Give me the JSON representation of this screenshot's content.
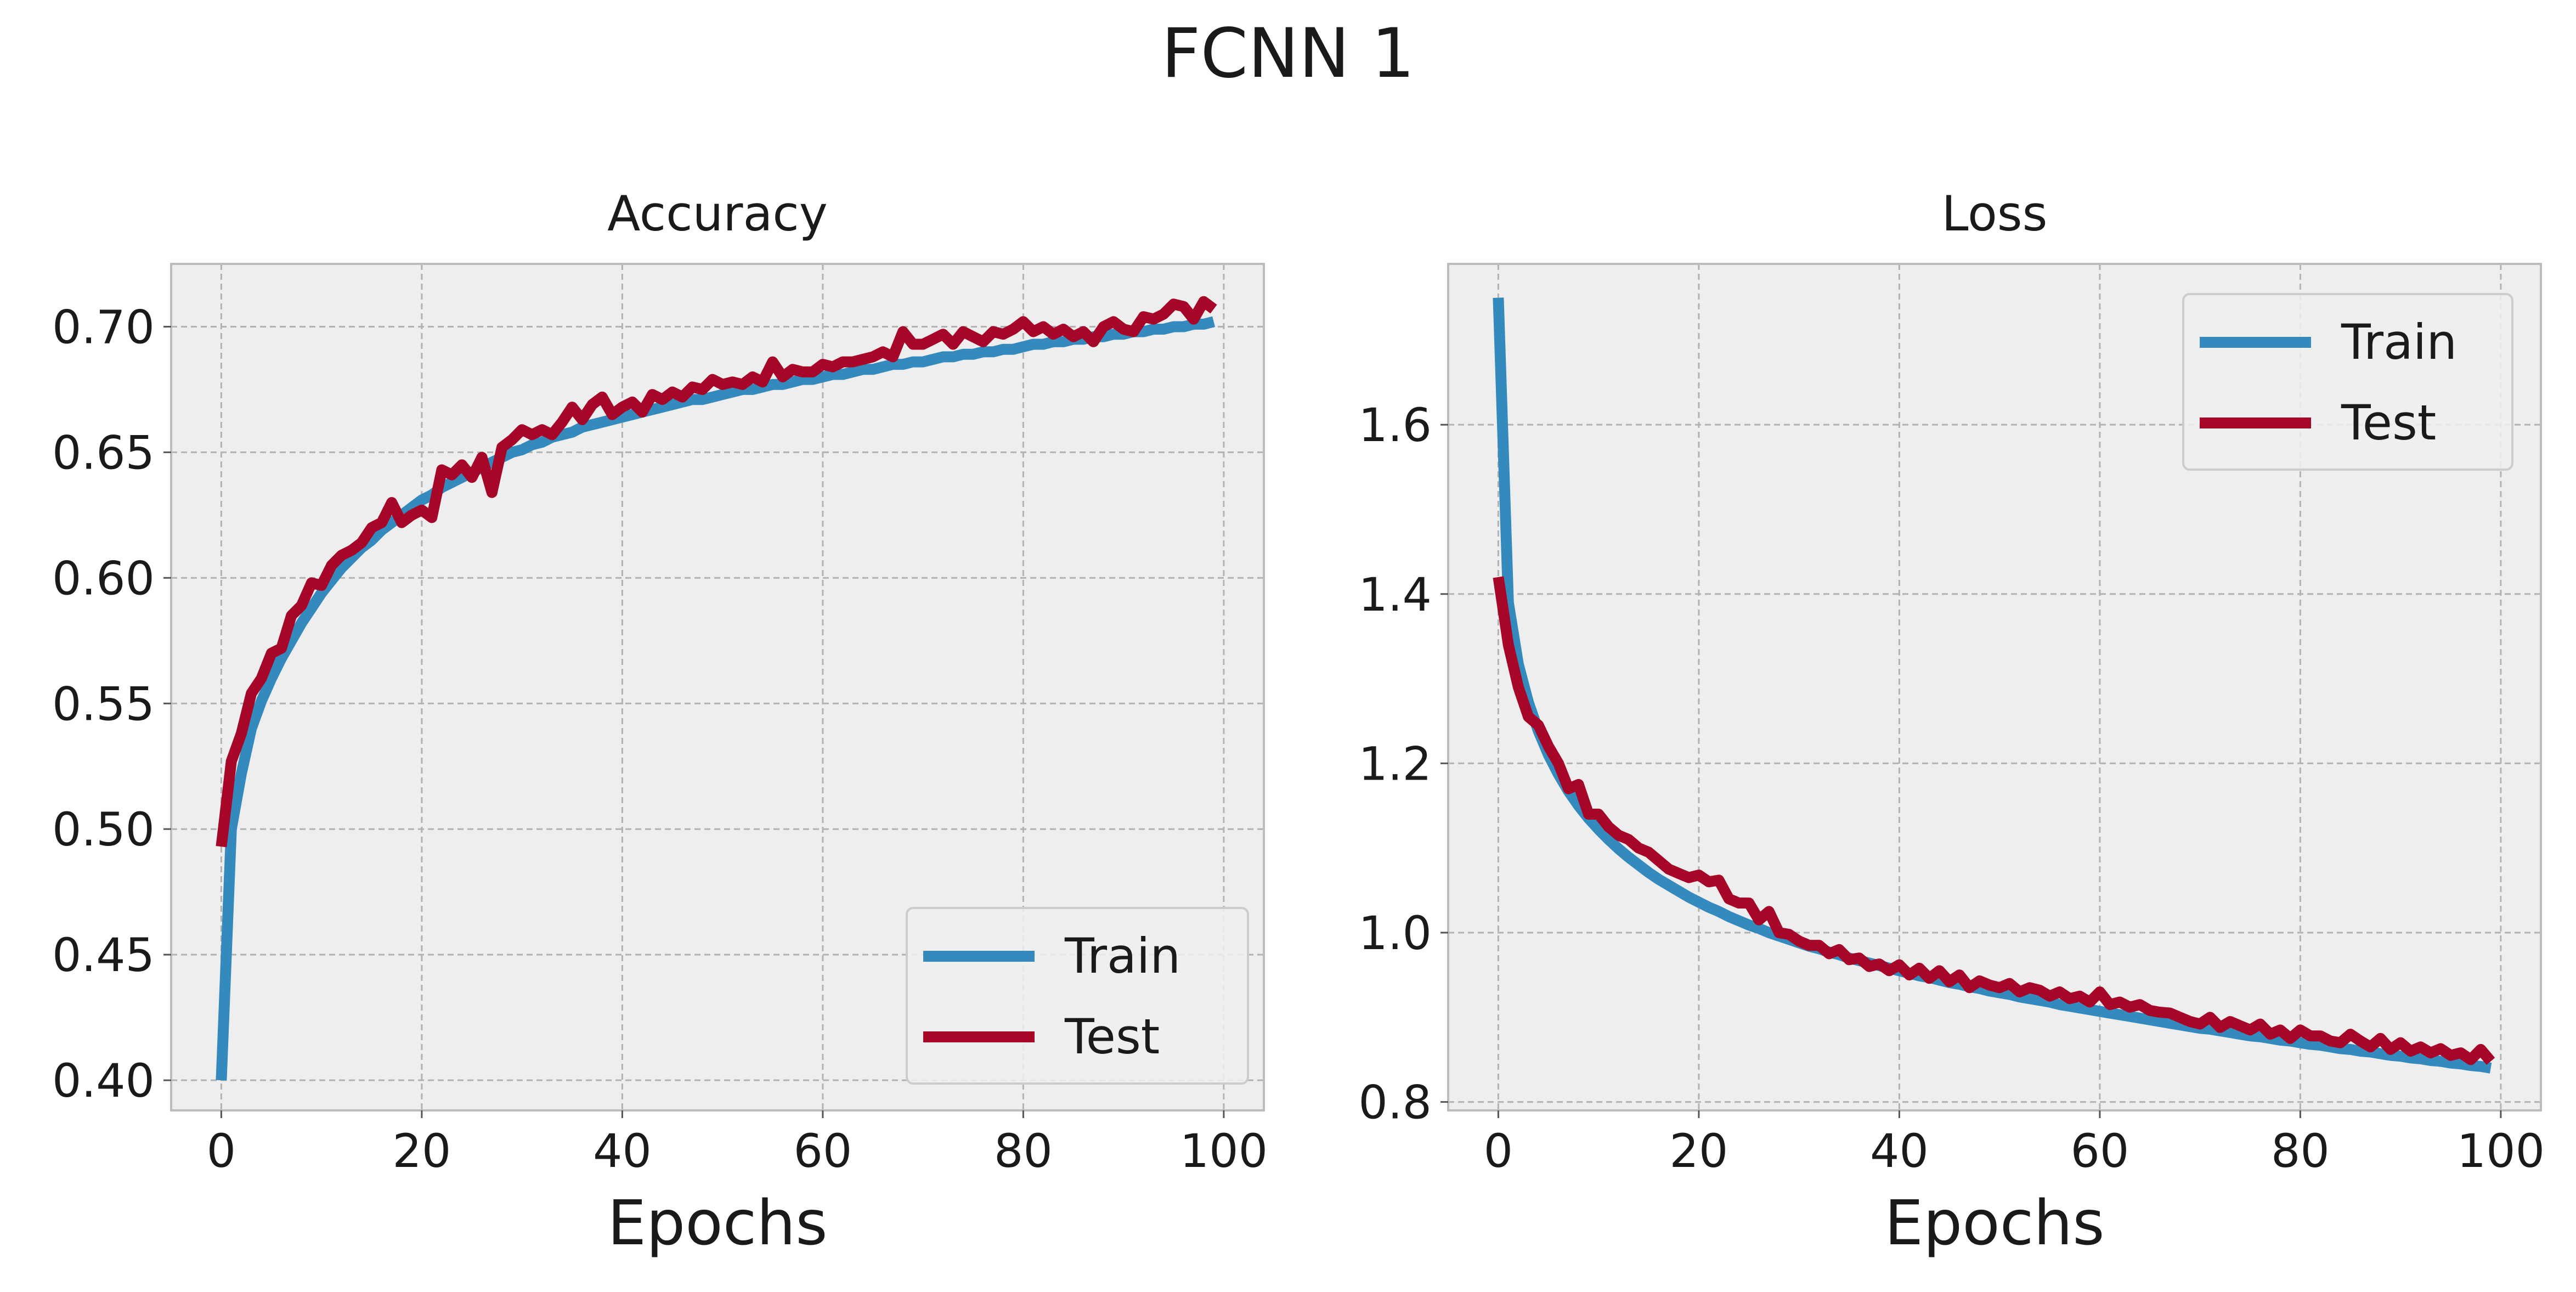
{
  "figure": {
    "suptitle": "FCNN 1"
  },
  "colors": {
    "train": "#348ABD",
    "test": "#A60628",
    "plot_bg": "#EEEEEE",
    "grid": "#B2B2B2",
    "axes_edge": "#BCBCBC"
  },
  "chart_data": [
    {
      "type": "line",
      "title": "Accuracy",
      "xlabel": "Epochs",
      "ylabel": "",
      "xlim": [
        -5,
        104
      ],
      "ylim": [
        0.388,
        0.725
      ],
      "xticks": [
        0,
        20,
        40,
        60,
        80,
        100
      ],
      "xtick_labels": [
        "0",
        "20",
        "40",
        "60",
        "80",
        "100"
      ],
      "yticks": [
        0.4,
        0.45,
        0.5,
        0.55,
        0.6,
        0.65,
        0.7
      ],
      "ytick_labels": [
        "0.40",
        "0.45",
        "0.50",
        "0.55",
        "0.60",
        "0.65",
        "0.70"
      ],
      "grid": true,
      "legend": {
        "position": "lower-right",
        "entries": [
          "Train",
          "Test"
        ]
      },
      "series": [
        {
          "name": "Train",
          "x_start": 0,
          "x_step": 1,
          "values": [
            0.4,
            0.5,
            0.522,
            0.54,
            0.551,
            0.56,
            0.568,
            0.575,
            0.582,
            0.588,
            0.594,
            0.599,
            0.604,
            0.608,
            0.612,
            0.615,
            0.619,
            0.622,
            0.625,
            0.628,
            0.631,
            0.633,
            0.636,
            0.638,
            0.64,
            0.642,
            0.644,
            0.646,
            0.648,
            0.65,
            0.651,
            0.653,
            0.654,
            0.656,
            0.657,
            0.658,
            0.66,
            0.661,
            0.662,
            0.663,
            0.664,
            0.665,
            0.666,
            0.667,
            0.668,
            0.669,
            0.67,
            0.671,
            0.671,
            0.672,
            0.673,
            0.674,
            0.675,
            0.675,
            0.676,
            0.677,
            0.677,
            0.678,
            0.679,
            0.679,
            0.68,
            0.681,
            0.681,
            0.682,
            0.683,
            0.683,
            0.684,
            0.685,
            0.685,
            0.686,
            0.686,
            0.687,
            0.688,
            0.688,
            0.689,
            0.689,
            0.69,
            0.69,
            0.691,
            0.691,
            0.692,
            0.693,
            0.693,
            0.694,
            0.694,
            0.695,
            0.695,
            0.696,
            0.696,
            0.697,
            0.697,
            0.698,
            0.698,
            0.699,
            0.699,
            0.7,
            0.7,
            0.701,
            0.701,
            0.702
          ]
        },
        {
          "name": "Test",
          "x_start": 0,
          "x_step": 1,
          "values": [
            0.493,
            0.527,
            0.538,
            0.554,
            0.56,
            0.57,
            0.572,
            0.585,
            0.589,
            0.598,
            0.597,
            0.605,
            0.609,
            0.611,
            0.614,
            0.62,
            0.622,
            0.63,
            0.622,
            0.625,
            0.627,
            0.624,
            0.643,
            0.641,
            0.645,
            0.64,
            0.648,
            0.634,
            0.652,
            0.655,
            0.659,
            0.657,
            0.659,
            0.657,
            0.662,
            0.668,
            0.663,
            0.669,
            0.672,
            0.665,
            0.668,
            0.67,
            0.666,
            0.673,
            0.671,
            0.674,
            0.672,
            0.676,
            0.675,
            0.679,
            0.677,
            0.678,
            0.677,
            0.68,
            0.678,
            0.686,
            0.68,
            0.683,
            0.682,
            0.682,
            0.685,
            0.684,
            0.686,
            0.686,
            0.687,
            0.688,
            0.69,
            0.688,
            0.698,
            0.693,
            0.693,
            0.695,
            0.697,
            0.693,
            0.698,
            0.696,
            0.694,
            0.698,
            0.697,
            0.699,
            0.702,
            0.698,
            0.7,
            0.697,
            0.699,
            0.696,
            0.698,
            0.694,
            0.7,
            0.702,
            0.699,
            0.698,
            0.704,
            0.703,
            0.705,
            0.709,
            0.708,
            0.703,
            0.71,
            0.707
          ]
        }
      ]
    },
    {
      "type": "line",
      "title": "Loss",
      "xlabel": "Epochs",
      "ylabel": "",
      "xlim": [
        -5,
        104
      ],
      "ylim": [
        0.79,
        1.79
      ],
      "xticks": [
        0,
        20,
        40,
        60,
        80,
        100
      ],
      "xtick_labels": [
        "0",
        "20",
        "40",
        "60",
        "80",
        "100"
      ],
      "yticks": [
        0.8,
        1.0,
        1.2,
        1.4,
        1.6
      ],
      "ytick_labels": [
        "0.8",
        "1.0",
        "1.2",
        "1.4",
        "1.6"
      ],
      "grid": true,
      "legend": {
        "position": "upper-right",
        "entries": [
          "Train",
          "Test"
        ]
      },
      "series": [
        {
          "name": "Train",
          "x_start": 0,
          "x_step": 1,
          "values": [
            1.75,
            1.39,
            1.317,
            1.272,
            1.238,
            1.21,
            1.187,
            1.167,
            1.15,
            1.135,
            1.122,
            1.11,
            1.099,
            1.089,
            1.08,
            1.071,
            1.063,
            1.056,
            1.049,
            1.042,
            1.036,
            1.03,
            1.025,
            1.019,
            1.014,
            1.009,
            1.005,
            1.0,
            0.996,
            0.992,
            0.988,
            0.984,
            0.981,
            0.977,
            0.974,
            0.97,
            0.967,
            0.964,
            0.961,
            0.958,
            0.955,
            0.952,
            0.949,
            0.947,
            0.944,
            0.941,
            0.939,
            0.936,
            0.934,
            0.931,
            0.929,
            0.927,
            0.924,
            0.922,
            0.92,
            0.918,
            0.915,
            0.913,
            0.911,
            0.909,
            0.907,
            0.905,
            0.903,
            0.901,
            0.899,
            0.897,
            0.895,
            0.893,
            0.891,
            0.889,
            0.887,
            0.886,
            0.884,
            0.882,
            0.88,
            0.878,
            0.877,
            0.875,
            0.873,
            0.872,
            0.87,
            0.868,
            0.867,
            0.865,
            0.863,
            0.862,
            0.86,
            0.859,
            0.857,
            0.855,
            0.854,
            0.852,
            0.851,
            0.849,
            0.848,
            0.846,
            0.845,
            0.843,
            0.842,
            0.84
          ]
        },
        {
          "name": "Test",
          "x_start": 0,
          "x_step": 1,
          "values": [
            1.42,
            1.34,
            1.29,
            1.255,
            1.245,
            1.22,
            1.2,
            1.17,
            1.175,
            1.14,
            1.14,
            1.125,
            1.115,
            1.11,
            1.1,
            1.095,
            1.085,
            1.075,
            1.07,
            1.065,
            1.068,
            1.06,
            1.062,
            1.04,
            1.035,
            1.035,
            1.015,
            1.025,
            1.0,
            0.998,
            0.99,
            0.985,
            0.985,
            0.975,
            0.98,
            0.968,
            0.97,
            0.96,
            0.963,
            0.955,
            0.962,
            0.95,
            0.958,
            0.946,
            0.955,
            0.942,
            0.95,
            0.935,
            0.943,
            0.938,
            0.935,
            0.94,
            0.93,
            0.935,
            0.932,
            0.925,
            0.93,
            0.922,
            0.925,
            0.918,
            0.93,
            0.915,
            0.918,
            0.912,
            0.915,
            0.908,
            0.906,
            0.905,
            0.9,
            0.895,
            0.892,
            0.9,
            0.888,
            0.895,
            0.89,
            0.885,
            0.892,
            0.88,
            0.885,
            0.875,
            0.885,
            0.878,
            0.878,
            0.872,
            0.87,
            0.88,
            0.872,
            0.865,
            0.875,
            0.862,
            0.87,
            0.86,
            0.865,
            0.858,
            0.863,
            0.855,
            0.858,
            0.85,
            0.862,
            0.848
          ]
        }
      ]
    }
  ]
}
